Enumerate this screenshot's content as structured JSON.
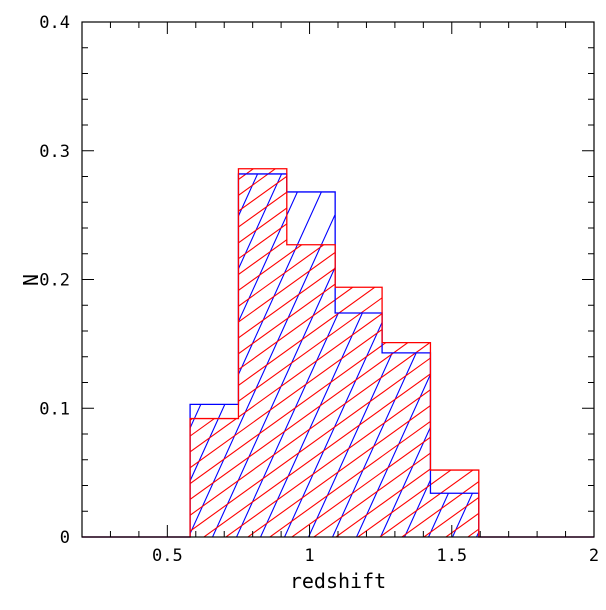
{
  "chart_data": {
    "type": "bar",
    "subtype": "step-histogram",
    "xlabel": "redshift",
    "ylabel": "N",
    "xlim": [
      0.2,
      2.0
    ],
    "ylim": [
      0,
      0.4
    ],
    "x_ticks": [
      0.5,
      1,
      1.5,
      2
    ],
    "x_tick_labels": [
      "0.5",
      "1",
      "1.5",
      "2"
    ],
    "y_ticks": [
      0,
      0.1,
      0.2,
      0.3,
      0.4
    ],
    "y_tick_labels": [
      "0",
      "0.1",
      "0.2",
      "0.3",
      "0.4"
    ],
    "bin_edges": [
      0.2,
      0.4,
      0.58,
      0.75,
      0.92,
      1.09,
      1.255,
      1.425,
      1.595,
      2.0
    ],
    "grid": false,
    "legend": "none",
    "series": [
      {
        "values": [
          0,
          0,
          0.103,
          0.282,
          0.268,
          0.174,
          0.143,
          0.034,
          0
        ],
        "color": "#0000ff",
        "hatch": "steep"
      },
      {
        "values": [
          0,
          0,
          0.092,
          0.286,
          0.227,
          0.194,
          0.151,
          0.052,
          0
        ],
        "color": "#ff0000",
        "hatch": "shallow"
      }
    ]
  }
}
